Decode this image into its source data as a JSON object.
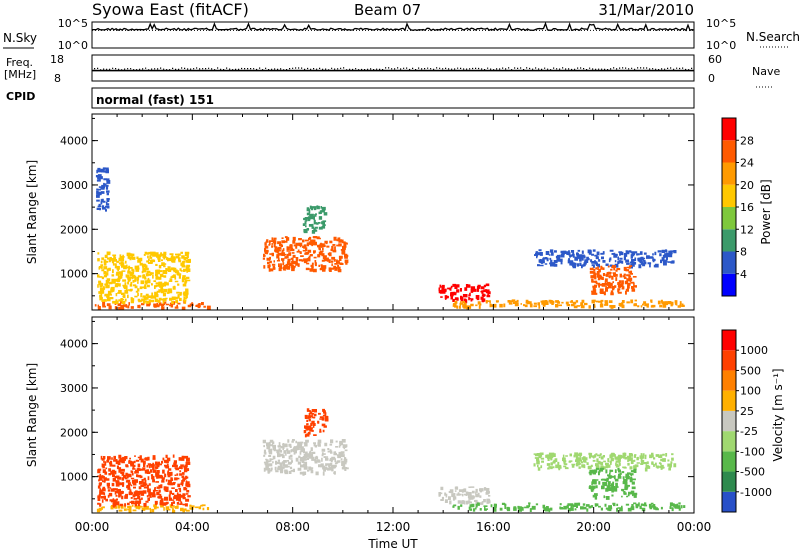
{
  "header": {
    "station": "Syowa East (fitACF)",
    "beam": "Beam 07",
    "date": "31/Mar/2010"
  },
  "chart_data": [
    {
      "type": "line",
      "panel": "nsky-nsearch",
      "left_label": "N.Sky",
      "right_label": "N.Search",
      "left_ticks": [
        "10^5",
        "10^0"
      ],
      "right_ticks": [
        "10^5",
        "10^0"
      ],
      "x_range_hours": [
        0,
        24
      ],
      "series": [
        {
          "name": "N.Sky",
          "style": "solid",
          "level_fraction": 0.72
        },
        {
          "name": "N.Search",
          "style": "dotted",
          "level_fraction": 0.68
        }
      ]
    },
    {
      "type": "scatter",
      "panel": "freq-nave",
      "left_label_top": "Freq.",
      "left_label_bottom": "[MHz]",
      "right_label": "Nave",
      "left_ticks": [
        "18",
        "8"
      ],
      "right_ticks": [
        "60",
        "0"
      ],
      "x_range_hours": [
        0,
        24
      ],
      "series": [
        {
          "name": "Freq.",
          "value": 12
        },
        {
          "name": "Nave",
          "value": 28
        }
      ]
    },
    {
      "type": "text",
      "panel": "cpid",
      "label": "CPID",
      "value": "normal (fast) 151"
    },
    {
      "type": "heatmap",
      "panel": "power",
      "ylabel": "Slant Range [km]",
      "yticks": [
        1000,
        2000,
        3000,
        4000
      ],
      "ylim": [
        180,
        4600
      ],
      "xlim_hours": [
        0,
        24
      ],
      "colorbar": {
        "label": "Power [dB]",
        "ticks": [
          "4",
          "8",
          "12",
          "16",
          "20",
          "24",
          "28"
        ],
        "colors": [
          "#0000ff",
          "#2c58c8",
          "#3b9a6a",
          "#7ec83c",
          "#ffc800",
          "#ff9a00",
          "#ff5a00",
          "#ff0000"
        ]
      },
      "features": [
        {
          "t0": 0.1,
          "t1": 4.6,
          "r0": 250,
          "r1": 380,
          "level": 6
        },
        {
          "t0": 0.15,
          "t1": 0.6,
          "r0": 2400,
          "r1": 3400,
          "level": 1
        },
        {
          "t0": 0.2,
          "t1": 3.8,
          "r0": 380,
          "r1": 1500,
          "level": 4
        },
        {
          "t0": 6.8,
          "t1": 10.1,
          "r0": 1100,
          "r1": 1850,
          "level": 6
        },
        {
          "t0": 8.4,
          "t1": 9.3,
          "r0": 1950,
          "r1": 2550,
          "level": 2
        },
        {
          "t0": 13.8,
          "t1": 15.8,
          "r0": 420,
          "r1": 780,
          "level": 7
        },
        {
          "t0": 14.3,
          "t1": 23.6,
          "r0": 280,
          "r1": 420,
          "level": 5
        },
        {
          "t0": 17.6,
          "t1": 23.2,
          "r0": 1200,
          "r1": 1550,
          "level": 1
        },
        {
          "t0": 19.8,
          "t1": 21.6,
          "r0": 560,
          "r1": 1200,
          "level": 6
        }
      ]
    },
    {
      "type": "heatmap",
      "panel": "velocity",
      "ylabel": "Slant Range [km]",
      "yticks": [
        1000,
        2000,
        3000,
        4000
      ],
      "ylim": [
        180,
        4600
      ],
      "xlim_hours": [
        0,
        24
      ],
      "xticks": [
        "00:00",
        "04:00",
        "08:00",
        "12:00",
        "16:00",
        "20:00",
        "00:00"
      ],
      "xlabel": "Time UT",
      "colorbar": {
        "label": "Velocity [m s⁻¹]",
        "ticks": [
          "1000",
          "500",
          "100",
          "25",
          "-25",
          "-100",
          "-500",
          "-1000"
        ],
        "colors": [
          "#2850c8",
          "#2e8a4e",
          "#58b84a",
          "#a0d870",
          "#c8c8c0",
          "#ffb000",
          "#ff8000",
          "#ff4000",
          "#ff0000"
        ]
      },
      "features": [
        {
          "t0": 0.1,
          "t1": 4.6,
          "r0": 250,
          "r1": 380,
          "level": 5
        },
        {
          "t0": 0.2,
          "t1": 3.8,
          "r0": 380,
          "r1": 1500,
          "level": 7
        },
        {
          "t0": 6.8,
          "t1": 10.1,
          "r0": 1100,
          "r1": 1850,
          "level": 4
        },
        {
          "t0": 8.4,
          "t1": 9.3,
          "r0": 1950,
          "r1": 2550,
          "level": 7
        },
        {
          "t0": 13.8,
          "t1": 15.8,
          "r0": 420,
          "r1": 780,
          "level": 4
        },
        {
          "t0": 14.3,
          "t1": 23.6,
          "r0": 280,
          "r1": 420,
          "level": 2
        },
        {
          "t0": 17.6,
          "t1": 23.2,
          "r0": 1200,
          "r1": 1550,
          "level": 3
        },
        {
          "t0": 19.8,
          "t1": 21.6,
          "r0": 560,
          "r1": 1200,
          "level": 2
        }
      ]
    }
  ]
}
